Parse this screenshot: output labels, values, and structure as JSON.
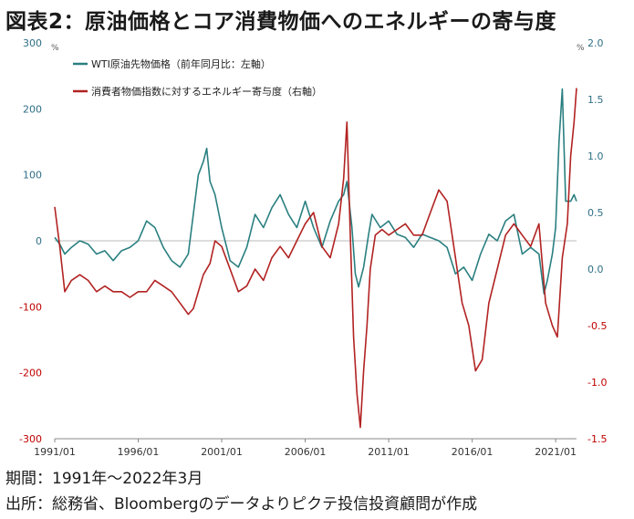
{
  "title": "図表2：原油価格とコア消費物価へのエネルギーの寄与度",
  "footer": {
    "period": "期間：1991年～2022年3月",
    "source": "出所：総務省、Bloombergのデータよりピクテ投信投資顧問が作成"
  },
  "chart_data": {
    "type": "line",
    "left_axis": {
      "unit": "%",
      "ylim": [
        -300,
        300
      ],
      "ticks": [
        300,
        200,
        100,
        0,
        -100,
        -200,
        -300
      ]
    },
    "right_axis": {
      "unit": "%",
      "ylim": [
        -1.5,
        2.0
      ],
      "ticks": [
        2.0,
        1.5,
        1.0,
        0.5,
        0.0,
        -0.5,
        -1.0,
        -1.5
      ]
    },
    "x_tick_labels": [
      "1991/01",
      "1996/01",
      "2001/01",
      "2006/01",
      "2011/01",
      "2016/01",
      "2021/01"
    ],
    "xlim": [
      1991.0,
      2022.25
    ],
    "colors": {
      "wti": "#2a7f80",
      "cpi": "#b22222"
    },
    "series": [
      {
        "name": "WTI原油先物価格（前年同月比：左軸）",
        "axis": "left",
        "x": [
          1991.0,
          1991.3,
          1991.6,
          1992.0,
          1992.5,
          1993.0,
          1993.5,
          1994.0,
          1994.5,
          1995.0,
          1995.5,
          1996.0,
          1996.5,
          1997.0,
          1997.5,
          1998.0,
          1998.5,
          1999.0,
          1999.3,
          1999.6,
          1999.9,
          2000.1,
          2000.3,
          2000.6,
          2001.0,
          2001.5,
          2002.0,
          2002.5,
          2003.0,
          2003.5,
          2004.0,
          2004.5,
          2005.0,
          2005.5,
          2006.0,
          2006.5,
          2007.0,
          2007.5,
          2008.0,
          2008.3,
          2008.5,
          2008.8,
          2009.0,
          2009.2,
          2009.5,
          2009.8,
          2010.0,
          2010.5,
          2011.0,
          2011.5,
          2012.0,
          2012.5,
          2013.0,
          2013.5,
          2014.0,
          2014.5,
          2015.0,
          2015.5,
          2016.0,
          2016.5,
          2017.0,
          2017.5,
          2018.0,
          2018.5,
          2019.0,
          2019.5,
          2020.0,
          2020.3,
          2020.5,
          2020.8,
          2021.0,
          2021.2,
          2021.4,
          2021.6,
          2021.9,
          2022.1,
          2022.25
        ],
        "values": [
          5,
          -5,
          -20,
          -10,
          0,
          -5,
          -20,
          -15,
          -30,
          -15,
          -10,
          0,
          30,
          20,
          -10,
          -30,
          -40,
          -20,
          40,
          100,
          120,
          140,
          90,
          70,
          20,
          -30,
          -40,
          -10,
          40,
          20,
          50,
          70,
          40,
          20,
          60,
          20,
          -10,
          30,
          60,
          70,
          90,
          20,
          -50,
          -70,
          -40,
          10,
          40,
          20,
          30,
          10,
          5,
          -10,
          10,
          5,
          0,
          -10,
          -50,
          -40,
          -60,
          -20,
          10,
          0,
          30,
          40,
          -20,
          -10,
          -20,
          -80,
          -60,
          -20,
          20,
          150,
          230,
          60,
          60,
          70,
          60
        ]
      },
      {
        "name": "消費者物価指数に対するエネルギー寄与度（右軸）",
        "axis": "right",
        "x": [
          1991.0,
          1991.3,
          1991.6,
          1992.0,
          1992.5,
          1993.0,
          1993.5,
          1994.0,
          1994.5,
          1995.0,
          1995.5,
          1996.0,
          1996.5,
          1997.0,
          1997.5,
          1998.0,
          1998.5,
          1999.0,
          1999.3,
          1999.6,
          1999.9,
          2000.3,
          2000.6,
          2001.0,
          2001.5,
          2002.0,
          2002.5,
          2003.0,
          2003.5,
          2004.0,
          2004.5,
          2005.0,
          2005.5,
          2006.0,
          2006.5,
          2007.0,
          2007.5,
          2008.0,
          2008.3,
          2008.5,
          2008.7,
          2008.9,
          2009.1,
          2009.3,
          2009.5,
          2009.7,
          2009.9,
          2010.2,
          2010.6,
          2011.0,
          2011.5,
          2012.0,
          2012.5,
          2013.0,
          2013.5,
          2014.0,
          2014.5,
          2015.0,
          2015.4,
          2015.8,
          2016.2,
          2016.6,
          2017.0,
          2017.5,
          2018.0,
          2018.5,
          2019.0,
          2019.5,
          2020.0,
          2020.4,
          2020.8,
          2021.1,
          2021.4,
          2021.7,
          2021.9,
          2022.1,
          2022.25
        ],
        "values": [
          0.55,
          0.2,
          -0.2,
          -0.1,
          -0.05,
          -0.1,
          -0.2,
          -0.15,
          -0.2,
          -0.2,
          -0.25,
          -0.2,
          -0.2,
          -0.1,
          -0.15,
          -0.2,
          -0.3,
          -0.4,
          -0.35,
          -0.2,
          -0.05,
          0.05,
          0.25,
          0.2,
          0.0,
          -0.2,
          -0.15,
          0.0,
          -0.1,
          0.1,
          0.2,
          0.1,
          0.25,
          0.4,
          0.5,
          0.2,
          0.1,
          0.4,
          0.8,
          1.3,
          0.3,
          -0.6,
          -1.1,
          -1.4,
          -0.9,
          -0.5,
          0.0,
          0.3,
          0.35,
          0.3,
          0.35,
          0.4,
          0.3,
          0.3,
          0.5,
          0.7,
          0.6,
          0.1,
          -0.3,
          -0.5,
          -0.9,
          -0.8,
          -0.3,
          0.0,
          0.3,
          0.4,
          0.3,
          0.2,
          0.4,
          -0.3,
          -0.5,
          -0.6,
          0.1,
          0.4,
          1.0,
          1.3,
          1.6
        ]
      }
    ]
  }
}
